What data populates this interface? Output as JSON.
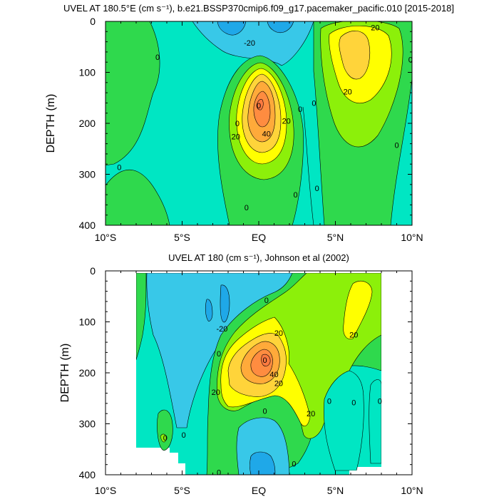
{
  "chart_data": [
    {
      "type": "heatmap",
      "title": "UVEL AT 180.5°E (cm s⁻¹), b.e21.BSSP370cmip6.f09_g17.pacemaker_pacific.010 [2015-2018]",
      "ylabel": "DEPTH (m)",
      "xlabel": "",
      "x_ticks": [
        "10°S",
        "5°S",
        "EQ",
        "5°N",
        "10°N"
      ],
      "x_tick_values": [
        -10,
        -5,
        0,
        5,
        10
      ],
      "y_ticks": [
        "0",
        "100",
        "200",
        "300",
        "400"
      ],
      "y_tick_values": [
        0,
        100,
        200,
        300,
        400
      ],
      "xlim": [
        -10,
        10
      ],
      "ylim": [
        0,
        400
      ],
      "y_reversed": true,
      "contour_interval": 10,
      "contour_labels": [
        {
          "text": "-20",
          "x": -0.6,
          "y": 42
        },
        {
          "text": "20",
          "x": 7.6,
          "y": 12
        },
        {
          "text": "0",
          "x": -6.6,
          "y": 70
        },
        {
          "text": "0",
          "x": 9.9,
          "y": 75
        },
        {
          "text": "0",
          "x": -9.1,
          "y": 286
        },
        {
          "text": "0",
          "x": -1.4,
          "y": 200
        },
        {
          "text": "0",
          "x": 2.7,
          "y": 172
        },
        {
          "text": "0",
          "x": 3.6,
          "y": 160
        },
        {
          "text": "0",
          "x": -0.8,
          "y": 365
        },
        {
          "text": "0",
          "x": 2.4,
          "y": 340
        },
        {
          "text": "0",
          "x": 3.8,
          "y": 327
        },
        {
          "text": "0",
          "x": 9.0,
          "y": 243
        },
        {
          "text": "0",
          "x": 0.0,
          "y": 165
        },
        {
          "text": "20",
          "x": 1.8,
          "y": 195
        },
        {
          "text": "20",
          "x": -1.5,
          "y": 226
        },
        {
          "text": "40",
          "x": 0.5,
          "y": 220
        },
        {
          "text": "20",
          "x": 5.8,
          "y": 138
        }
      ],
      "features": [
        {
          "kind": "core",
          "x": 0.0,
          "y": 165,
          "peak": 50
        },
        {
          "kind": "core",
          "x": 6.6,
          "y": 70,
          "peak": 35
        },
        {
          "kind": "minimum",
          "x": -1.0,
          "y": 10,
          "peak": -25
        },
        {
          "kind": "minimum",
          "x": 2.6,
          "y": 10,
          "peak": -15
        }
      ]
    },
    {
      "type": "heatmap",
      "title": "UVEL AT 180 (cm s⁻¹), Johnson et al (2002)",
      "ylabel": "DEPTH (m)",
      "xlabel": "",
      "x_ticks": [
        "10°S",
        "5°S",
        "EQ",
        "5°N",
        "10°N"
      ],
      "x_tick_values": [
        -10,
        -5,
        0,
        5,
        10
      ],
      "y_ticks": [
        "0",
        "100",
        "200",
        "300",
        "400"
      ],
      "y_tick_values": [
        0,
        100,
        200,
        300,
        400
      ],
      "xlim": [
        -10,
        10
      ],
      "ylim": [
        0,
        400
      ],
      "y_reversed": true,
      "data_xrange": [
        -8,
        8
      ],
      "contour_interval": 10,
      "contour_labels": [
        {
          "text": "0",
          "x": 0.5,
          "y": 57
        },
        {
          "text": "-20",
          "x": -2.4,
          "y": 113
        },
        {
          "text": "20",
          "x": 1.3,
          "y": 122
        },
        {
          "text": "20",
          "x": 6.2,
          "y": 125
        },
        {
          "text": "0",
          "x": -2.6,
          "y": 162
        },
        {
          "text": "0",
          "x": 0.4,
          "y": 175
        },
        {
          "text": "40",
          "x": 1.0,
          "y": 203
        },
        {
          "text": "20",
          "x": 1.3,
          "y": 220
        },
        {
          "text": "20",
          "x": -2.8,
          "y": 238
        },
        {
          "text": "0",
          "x": 4.6,
          "y": 255
        },
        {
          "text": "0",
          "x": 6.2,
          "y": 258
        },
        {
          "text": "0",
          "x": 7.9,
          "y": 255
        },
        {
          "text": "0",
          "x": 0.4,
          "y": 275
        },
        {
          "text": "20",
          "x": 3.4,
          "y": 280
        },
        {
          "text": "0",
          "x": -6.1,
          "y": 327
        },
        {
          "text": "0",
          "x": -4.9,
          "y": 322
        },
        {
          "text": "0",
          "x": 2.3,
          "y": 378
        },
        {
          "text": "0",
          "x": -2.6,
          "y": 395
        }
      ],
      "features": [
        {
          "kind": "core",
          "x": 0.5,
          "y": 172,
          "peak": 50
        },
        {
          "kind": "core",
          "x": 6.5,
          "y": 80,
          "peak": 25
        },
        {
          "kind": "minimum",
          "x": -1.5,
          "y": 50,
          "peak": -25
        },
        {
          "kind": "minimum",
          "x": 0.5,
          "y": 345,
          "peak": -15
        }
      ]
    }
  ]
}
